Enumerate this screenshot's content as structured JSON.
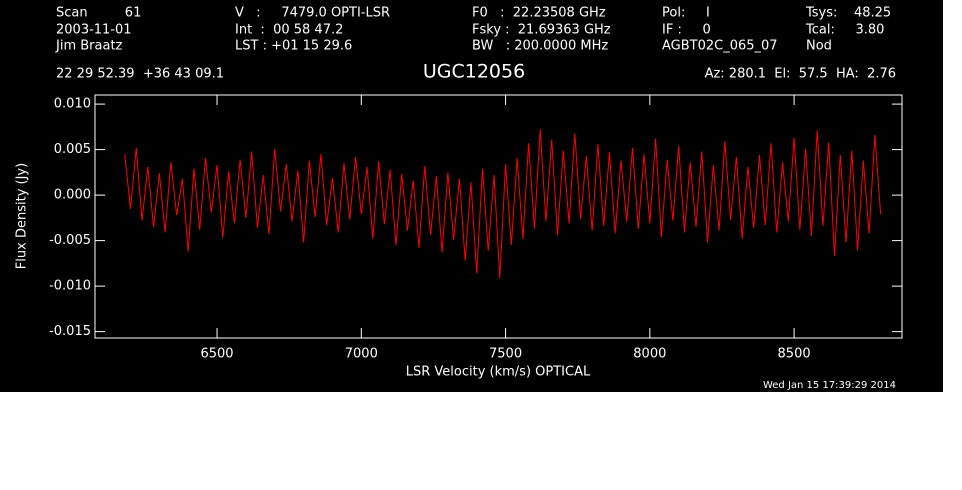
{
  "chart_data": {
    "type": "line",
    "title": "UGC12056",
    "header": [
      "Scan         61",
      "2003-11-01",
      "Jim Braatz",
      "V   :     7479.0 OPTI-LSR",
      "Int  :  00 58 47.2",
      "LST : +01 15 29.6",
      "F0   :  22.23508 GHz",
      "Fsky :  21.69363 GHz",
      "BW   : 200.0000 MHz",
      "Pol:     I",
      "IF :     0",
      "AGBT02C_065_07",
      "Tsys:    48.25",
      "Tcal:     3.80",
      "Nod",
      "22 29 52.39  +36 43 09.1",
      "Az: 280.1  El:  57.5  HA:  2.76"
    ],
    "x_label": "LSR Velocity (km/s) OPTICAL",
    "y_label": "Flux Density (Jy)",
    "timestamp": "Wed Jan 15 17:39:29 2014",
    "xlim": [
      6077,
      8874
    ],
    "ylim": [
      -0.0157,
      0.011
    ],
    "xticks": [
      6500,
      7000,
      7500,
      8000,
      8500
    ],
    "yticks": [
      {
        "value": 0.01,
        "label": "0.010"
      },
      {
        "value": 0.005,
        "label": "0.005"
      },
      {
        "value": 0,
        "label": "0.000"
      },
      {
        "value": -0.005,
        "label": "-0.005"
      },
      {
        "value": -0.01,
        "label": "-0.010"
      },
      {
        "value": -0.015,
        "label": "-0.015"
      }
    ],
    "x": [
      6180,
      6200,
      6220,
      6240,
      6260,
      6280,
      6300,
      6320,
      6340,
      6360,
      6380,
      6400,
      6420,
      6440,
      6460,
      6480,
      6500,
      6520,
      6540,
      6560,
      6580,
      6600,
      6620,
      6640,
      6660,
      6680,
      6700,
      6720,
      6740,
      6760,
      6780,
      6800,
      6820,
      6840,
      6860,
      6880,
      6900,
      6920,
      6940,
      6960,
      6980,
      7000,
      7020,
      7040,
      7060,
      7080,
      7100,
      7120,
      7140,
      7160,
      7180,
      7200,
      7220,
      7240,
      7260,
      7280,
      7300,
      7320,
      7340,
      7360,
      7380,
      7400,
      7420,
      7440,
      7460,
      7480,
      7500,
      7520,
      7540,
      7560,
      7580,
      7600,
      7620,
      7640,
      7660,
      7680,
      7700,
      7720,
      7740,
      7760,
      7780,
      7800,
      7820,
      7840,
      7860,
      7880,
      7900,
      7920,
      7940,
      7960,
      7980,
      8000,
      8020,
      8040,
      8060,
      8080,
      8100,
      8120,
      8140,
      8160,
      8180,
      8200,
      8220,
      8240,
      8260,
      8280,
      8300,
      8320,
      8340,
      8360,
      8380,
      8400,
      8420,
      8440,
      8460,
      8480,
      8500,
      8520,
      8540,
      8560,
      8580,
      8600,
      8620,
      8640,
      8660,
      8680,
      8700,
      8720,
      8740,
      8760,
      8780,
      8800
    ],
    "series": [
      {
        "color": "#ff0000",
        "values": [
          0.0045,
          -0.0015,
          0.0052,
          -0.0028,
          0.0031,
          -0.0035,
          0.0024,
          -0.0041,
          0.0036,
          -0.0022,
          0.0018,
          -0.0062,
          0.0029,
          -0.0038,
          0.0041,
          -0.0019,
          0.0033,
          -0.0047,
          0.0026,
          -0.0031,
          0.0039,
          -0.0025,
          0.0048,
          -0.0036,
          0.0022,
          -0.0043,
          0.0051,
          -0.0018,
          0.0034,
          -0.0029,
          0.0027,
          -0.0052,
          0.0038,
          -0.0024,
          0.0045,
          -0.0033,
          0.0019,
          -0.0041,
          0.0035,
          -0.0027,
          0.0042,
          -0.0021,
          0.0031,
          -0.0048,
          0.0037,
          -0.0032,
          0.0028,
          -0.0055,
          0.0023,
          -0.0039,
          0.0016,
          -0.0058,
          0.0032,
          -0.0044,
          0.0021,
          -0.0063,
          0.0025,
          -0.0049,
          0.0018,
          -0.0072,
          0.0014,
          -0.0086,
          0.0029,
          -0.0061,
          0.0022,
          -0.0091,
          0.0034,
          -0.0055,
          0.0041,
          -0.0048,
          0.0057,
          -0.0037,
          0.0072,
          -0.0029,
          0.0061,
          -0.0044,
          0.0049,
          -0.0031,
          0.0068,
          -0.0026,
          0.0043,
          -0.0039,
          0.0056,
          -0.0034,
          0.0047,
          -0.0042,
          0.0038,
          -0.0029,
          0.0052,
          -0.0037,
          0.0045,
          -0.0031,
          0.0062,
          -0.0046,
          0.0039,
          -0.0028,
          0.0054,
          -0.0041,
          0.0036,
          -0.0035,
          0.0048,
          -0.0052,
          0.0033,
          -0.0039,
          0.0059,
          -0.0027,
          0.0042,
          -0.0048,
          0.0031,
          -0.0036,
          0.0044,
          -0.0033,
          0.0057,
          -0.0041,
          0.0036,
          -0.0029,
          0.0063,
          -0.0038,
          0.0051,
          -0.0045,
          0.0071,
          -0.0034,
          0.0058,
          -0.0067,
          0.0044,
          -0.0052,
          0.0049,
          -0.0061,
          0.0038,
          -0.0042,
          0.0066,
          -0.0021
        ]
      }
    ]
  }
}
